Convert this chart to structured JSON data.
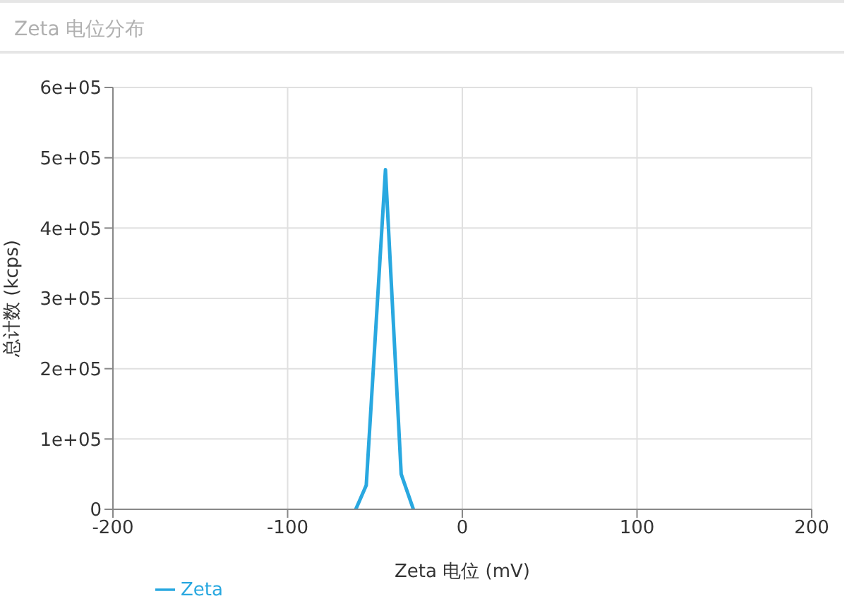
{
  "chart_data": {
    "type": "line",
    "title": "Zeta 电位分布",
    "xlabel": "Zeta 电位 (mV)",
    "ylabel": "总计数 (kcps)",
    "x": [
      -61,
      -55,
      -44,
      -35,
      -28
    ],
    "series": [
      {
        "name": "Zeta",
        "color": "#29a8e0",
        "values": [
          0,
          34000,
          483000,
          50000,
          0
        ]
      }
    ],
    "xlim": [
      -200,
      200
    ],
    "xticks": [
      -200,
      -100,
      0,
      100,
      200
    ],
    "ylim": [
      0,
      600000
    ],
    "yticks": [
      0,
      {
        "value": 100000,
        "label": "1e+05"
      },
      {
        "value": 200000,
        "label": "2e+05"
      },
      {
        "value": 300000,
        "label": "3e+05"
      },
      {
        "value": 400000,
        "label": "4e+05"
      },
      {
        "value": 500000,
        "label": "5e+05"
      },
      {
        "value": 600000,
        "label": "6e+05"
      }
    ],
    "grid": true,
    "legend": "bottom left"
  }
}
